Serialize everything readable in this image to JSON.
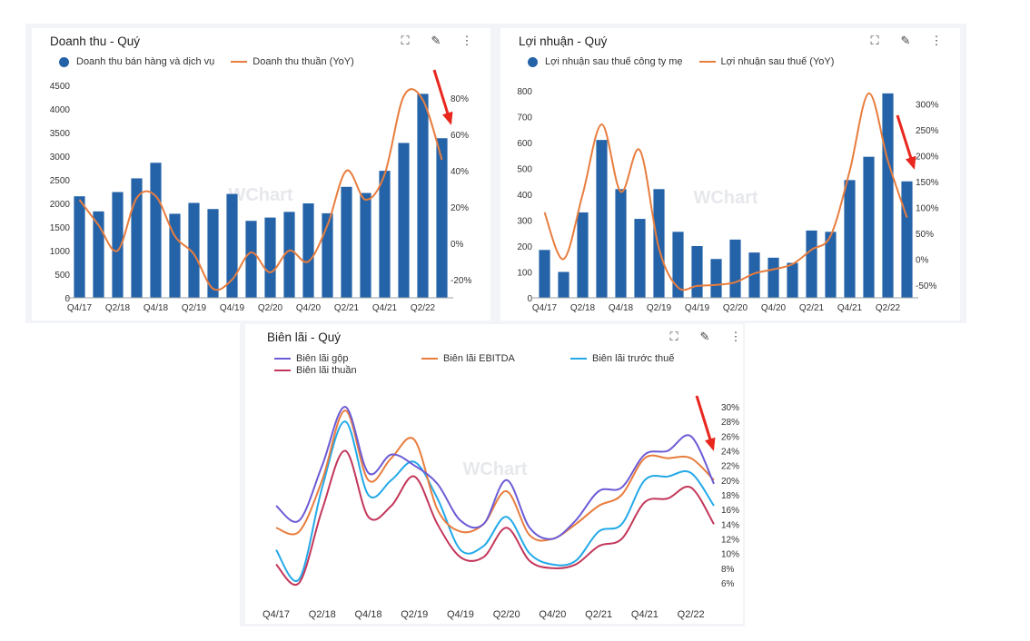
{
  "colors": {
    "bar": "#2563a8",
    "orange": "#e87d3e",
    "purple": "#6b5bd6",
    "cyan": "#23a9e8",
    "crimson": "#c3365a",
    "arrow": "#e8271f",
    "watermark": "#e6e8ec"
  },
  "watermark": "WChart",
  "toolbar": {
    "expand_icon": "expand-icon",
    "edit_icon": "pencil-icon",
    "more_icon": "more-vertical-icon"
  },
  "chart_data": [
    {
      "type": "bar",
      "title": "Doanh thu - Quý",
      "categories": [
        "Q4/17",
        "Q1/18",
        "Q2/18",
        "Q3/18",
        "Q4/18",
        "Q1/19",
        "Q2/19",
        "Q3/19",
        "Q4/19",
        "Q1/20",
        "Q2/20",
        "Q3/20",
        "Q4/20",
        "Q1/21",
        "Q2/21",
        "Q3/21",
        "Q4/21",
        "Q1/22",
        "Q2/22",
        "Q3/22"
      ],
      "x_tick_labels": [
        "Q4/17",
        "Q2/18",
        "Q4/18",
        "Q2/19",
        "Q4/19",
        "Q2/20",
        "Q4/20",
        "Q2/21",
        "Q4/21",
        "Q2/22"
      ],
      "series": [
        {
          "name": "Doanh thu bán hàng và dịch vụ",
          "type": "bar",
          "axis": "left",
          "values": [
            2150,
            1830,
            2240,
            2530,
            2860,
            1780,
            2010,
            1880,
            2200,
            1630,
            1700,
            1820,
            2000,
            1790,
            2350,
            2220,
            2690,
            3280,
            4320,
            3380
          ]
        },
        {
          "name": "Doanh thu thuần (YoY)",
          "type": "line",
          "axis": "right",
          "values": [
            24,
            10,
            -4,
            25,
            26,
            4,
            -6,
            -25,
            -20,
            -5,
            -16,
            -4,
            -10,
            10,
            40,
            24,
            38,
            81,
            79,
            46
          ]
        }
      ],
      "y_left": {
        "ticks": [
          "0",
          "500",
          "1000",
          "1500",
          "2000",
          "2500",
          "3000",
          "3500",
          "4000",
          "4500"
        ],
        "ylim": [
          0,
          4500
        ]
      },
      "y_right": {
        "ticks": [
          "-20%",
          "0%",
          "20%",
          "40%",
          "60%",
          "80%"
        ],
        "ylim": [
          -30,
          87
        ]
      }
    },
    {
      "type": "bar",
      "title": "Lợi nhuận - Quý",
      "categories": [
        "Q4/17",
        "Q1/18",
        "Q2/18",
        "Q3/18",
        "Q4/18",
        "Q1/19",
        "Q2/19",
        "Q3/19",
        "Q4/19",
        "Q1/20",
        "Q2/20",
        "Q3/20",
        "Q4/20",
        "Q1/21",
        "Q2/21",
        "Q3/21",
        "Q4/21",
        "Q1/22",
        "Q2/22",
        "Q3/22"
      ],
      "x_tick_labels": [
        "Q4/17",
        "Q2/18",
        "Q4/18",
        "Q2/19",
        "Q4/19",
        "Q2/20",
        "Q4/20",
        "Q2/21",
        "Q4/21",
        "Q2/22"
      ],
      "series": [
        {
          "name": "Lợi nhuận sau thuế công ty mẹ",
          "type": "bar",
          "axis": "left",
          "values": [
            185,
            100,
            330,
            610,
            420,
            305,
            420,
            255,
            200,
            150,
            225,
            175,
            155,
            135,
            260,
            255,
            455,
            545,
            790,
            450
          ]
        },
        {
          "name": "Lợi nhuận sau thuế (YoY)",
          "type": "line",
          "axis": "right",
          "values": [
            90,
            0,
            125,
            260,
            130,
            210,
            20,
            -55,
            -52,
            -50,
            -45,
            -28,
            -20,
            -10,
            18,
            45,
            170,
            320,
            190,
            80
          ]
        }
      ],
      "y_left": {
        "ticks": [
          "0",
          "100",
          "200",
          "300",
          "400",
          "500",
          "600",
          "700",
          "800"
        ],
        "ylim": [
          0,
          800
        ]
      },
      "y_right": {
        "ticks": [
          "-50%",
          "0%",
          "50%",
          "100%",
          "150%",
          "200%",
          "250%",
          "300%"
        ],
        "ylim": [
          -75,
          325
        ]
      }
    },
    {
      "type": "line",
      "title": "Biên lãi - Quý",
      "categories": [
        "Q4/17",
        "Q1/18",
        "Q2/18",
        "Q3/18",
        "Q4/18",
        "Q1/19",
        "Q2/19",
        "Q3/19",
        "Q4/19",
        "Q1/20",
        "Q2/20",
        "Q3/20",
        "Q4/20",
        "Q1/21",
        "Q2/21",
        "Q3/21",
        "Q4/21",
        "Q1/22",
        "Q2/22",
        "Q3/22"
      ],
      "x_tick_labels": [
        "Q4/17",
        "Q2/18",
        "Q4/18",
        "Q2/19",
        "Q4/19",
        "Q2/20",
        "Q4/20",
        "Q2/21",
        "Q4/21",
        "Q2/22"
      ],
      "series": [
        {
          "name": "Biên lãi gộp",
          "color": "purple",
          "values": [
            16.5,
            14.5,
            22,
            30,
            21,
            23.5,
            22,
            19.5,
            14.5,
            14,
            20,
            13.5,
            12,
            14.5,
            18.5,
            19,
            23.5,
            24,
            26,
            19.5
          ]
        },
        {
          "name": "Biên lãi EBITDA",
          "color": "orange",
          "values": [
            13.5,
            13,
            20,
            29.5,
            20,
            23,
            25.5,
            16,
            13,
            14,
            18.5,
            12.5,
            12,
            14,
            16.5,
            18,
            23,
            23,
            23,
            20
          ]
        },
        {
          "name": "Biên lãi trước thuế",
          "color": "cyan",
          "values": [
            10.5,
            6.5,
            19,
            28,
            18,
            20,
            22.5,
            17.5,
            10.5,
            11,
            15,
            10,
            8.5,
            9,
            13,
            14,
            20,
            20.5,
            21,
            16.5
          ]
        },
        {
          "name": "Biên lãi thuần",
          "color": "crimson",
          "values": [
            8.5,
            6,
            16,
            24,
            15,
            16.5,
            20.5,
            14,
            9.5,
            9.5,
            13.5,
            9,
            8,
            8.5,
            11,
            12,
            17,
            17.5,
            19,
            14
          ]
        }
      ],
      "y_right": {
        "ticks": [
          "6%",
          "8%",
          "10%",
          "12%",
          "14%",
          "16%",
          "18%",
          "20%",
          "22%",
          "24%",
          "26%",
          "28%",
          "30%"
        ],
        "ylim": [
          5,
          31
        ]
      }
    }
  ]
}
